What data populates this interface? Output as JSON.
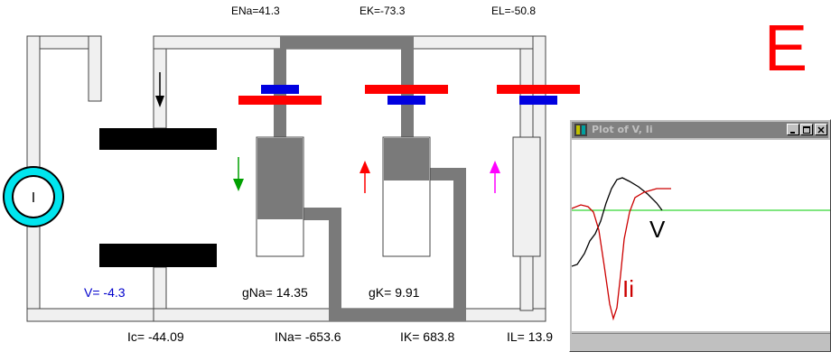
{
  "reversal_potentials": {
    "ena": "ENa=41.3",
    "ek": "EK=-73.3",
    "el": "EL=-50.8"
  },
  "panel_letter": "E",
  "current_source_symbol": "I",
  "membrane_voltage": "V= -4.3",
  "conductances": {
    "gna": "gNa= 14.35",
    "gk": "gK= 9.91"
  },
  "currents": {
    "ic": "Ic= -44.09",
    "ina": "INa= -653.6",
    "ik": "IK= 683.8",
    "il": "IL= 13.9"
  },
  "plot_window": {
    "title": "Plot of V, Ii",
    "v_label": "V",
    "ii_label": "Ii"
  },
  "colors": {
    "wire_light": "#f0f0f0",
    "wire_dark": "#7a7a7a",
    "battery_long": "#ff0000",
    "battery_short": "#0000e0",
    "capacitor_plate": "#000000",
    "current_source_ring": "#00e5ee",
    "arrow_na": "#00a000",
    "arrow_k": "#ff0000",
    "arrow_leak": "#ff00ff",
    "voltage_text": "#0000cc",
    "panel_letter": "#ff0000",
    "plot_v": "#000000",
    "plot_ii": "#cc0000",
    "plot_baseline": "#00cc00"
  },
  "icons": [
    "current-source-icon",
    "app-icon",
    "minimize-icon",
    "maximize-icon",
    "close-icon"
  ]
}
